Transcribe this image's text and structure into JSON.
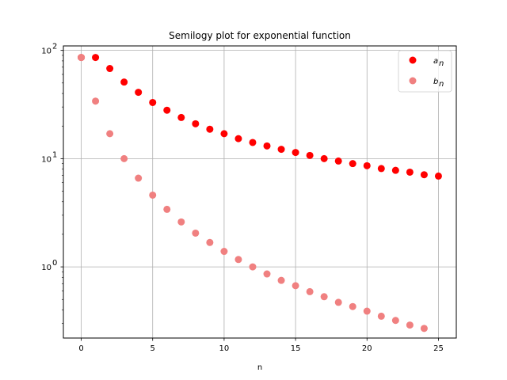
{
  "chart_data": {
    "type": "scatter",
    "title": "Semilogy plot for exponential function",
    "xlabel": "n",
    "ylabel": "",
    "yscale": "log",
    "xlim": [
      -1.25,
      26.25
    ],
    "ylim": [
      0.22,
      110
    ],
    "xticks": [
      0,
      5,
      10,
      15,
      20,
      25
    ],
    "xtick_labels": [
      "0",
      "5",
      "10",
      "15",
      "20",
      "25"
    ],
    "yticks": [
      1,
      10,
      100
    ],
    "ytick_labels": [
      {
        "base": "10",
        "exp": "0"
      },
      {
        "base": "10",
        "exp": "1"
      },
      {
        "base": "10",
        "exp": "2"
      }
    ],
    "grid": true,
    "legend_position": "top-right",
    "series": [
      {
        "name": "a",
        "name_subscript": "n",
        "color": "#ff0000",
        "x": [
          0,
          1,
          2,
          3,
          4,
          5,
          6,
          7,
          8,
          9,
          10,
          11,
          12,
          13,
          14,
          15,
          16,
          17,
          18,
          19,
          20,
          21,
          22,
          23,
          24,
          25
        ],
        "y": [
          86,
          86,
          68,
          51,
          41,
          33,
          28,
          24,
          21,
          18.7,
          17,
          15.3,
          14.1,
          13.1,
          12.2,
          11.4,
          10.7,
          10,
          9.5,
          9,
          8.6,
          8.1,
          7.8,
          7.5,
          7.1,
          6.9
        ]
      },
      {
        "name": "b",
        "name_subscript": "n",
        "color": "#f08080",
        "x": [
          0,
          1,
          2,
          3,
          4,
          5,
          6,
          7,
          8,
          9,
          10,
          11,
          12,
          13,
          14,
          15,
          16,
          17,
          18,
          19,
          20,
          21,
          22,
          23,
          24
        ],
        "y": [
          86,
          34,
          17,
          10,
          6.6,
          4.6,
          3.4,
          2.6,
          2.05,
          1.68,
          1.39,
          1.17,
          1.0,
          0.86,
          0.75,
          0.67,
          0.59,
          0.53,
          0.47,
          0.43,
          0.39,
          0.35,
          0.32,
          0.29,
          0.27
        ]
      }
    ]
  }
}
